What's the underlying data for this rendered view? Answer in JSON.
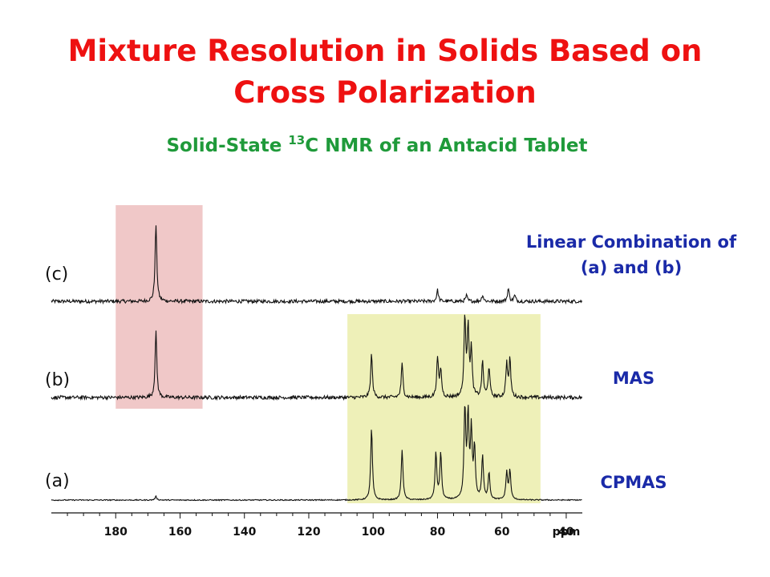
{
  "title": {
    "line1": "Mixture Resolution in Solids Based on",
    "line2": "Cross Polarization"
  },
  "subtitle": {
    "before": "Solid-State ",
    "sup": "13",
    "after": "C NMR of an Antacid Tablet"
  },
  "chart_data": {
    "type": "line",
    "x_axis": {
      "unit": "ppm",
      "reversed": true,
      "range": [
        200,
        35
      ],
      "ticks": [
        180,
        160,
        140,
        120,
        100,
        80,
        60,
        40
      ]
    },
    "highlight_regions": [
      {
        "name": "carbonyl-region",
        "from_ppm": 180,
        "to_ppm": 153,
        "color": "#f0c8c8"
      },
      {
        "name": "sugar-region",
        "from_ppm": 108,
        "to_ppm": 48,
        "color": "#eef0b8"
      }
    ],
    "series": [
      {
        "label": "(c)",
        "method": [
          "Linear Combination of",
          "(a) and (b)"
        ],
        "noise": 0.022,
        "peaks": [
          {
            "ppm": 167.5,
            "height": 0.96
          },
          {
            "ppm": 80,
            "height": 0.14
          },
          {
            "ppm": 71,
            "height": 0.07
          },
          {
            "ppm": 66,
            "height": 0.08
          },
          {
            "ppm": 58,
            "height": 0.16
          },
          {
            "ppm": 56,
            "height": 0.07
          }
        ]
      },
      {
        "label": "(b)",
        "method": [
          "MAS"
        ],
        "noise": 0.022,
        "peaks": [
          {
            "ppm": 167.5,
            "height": 0.82
          },
          {
            "ppm": 100.5,
            "height": 0.54
          },
          {
            "ppm": 91,
            "height": 0.42
          },
          {
            "ppm": 80,
            "height": 0.49
          },
          {
            "ppm": 79,
            "height": 0.34
          },
          {
            "ppm": 71.5,
            "height": 0.98
          },
          {
            "ppm": 70.5,
            "height": 0.85
          },
          {
            "ppm": 69.5,
            "height": 0.58
          },
          {
            "ppm": 66,
            "height": 0.44
          },
          {
            "ppm": 64,
            "height": 0.38
          },
          {
            "ppm": 58.5,
            "height": 0.42
          },
          {
            "ppm": 57.5,
            "height": 0.46
          }
        ]
      },
      {
        "label": "(a)",
        "method": [
          "CPMAS"
        ],
        "noise": 0.006,
        "peaks": [
          {
            "ppm": 167.5,
            "height": 0.04
          },
          {
            "ppm": 100.5,
            "height": 0.8
          },
          {
            "ppm": 91,
            "height": 0.56
          },
          {
            "ppm": 80.5,
            "height": 0.52
          },
          {
            "ppm": 79,
            "height": 0.52
          },
          {
            "ppm": 71.5,
            "height": 1.0
          },
          {
            "ppm": 70.5,
            "height": 0.9
          },
          {
            "ppm": 69.5,
            "height": 0.74
          },
          {
            "ppm": 68.5,
            "height": 0.56
          },
          {
            "ppm": 66,
            "height": 0.48
          },
          {
            "ppm": 64,
            "height": 0.3
          },
          {
            "ppm": 58.5,
            "height": 0.3
          },
          {
            "ppm": 57.5,
            "height": 0.32
          }
        ]
      }
    ]
  }
}
